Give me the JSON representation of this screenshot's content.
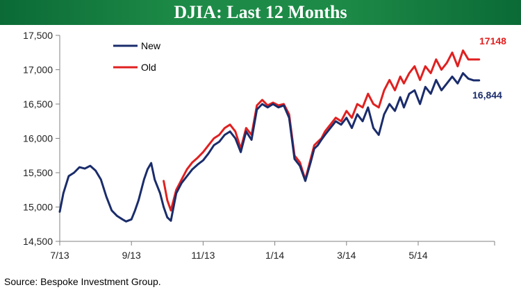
{
  "title": "DJIA: Last 12 Months",
  "source": "Source: Bespoke Investment Group.",
  "colors": {
    "title_bg": "#1d8b47",
    "new": "#1a2c6b",
    "old": "#e02020",
    "axis": "#808080"
  },
  "chart_data": {
    "type": "line",
    "title": "DJIA: Last 12 Months",
    "xlabel": "",
    "ylabel": "",
    "ylim": [
      14500,
      17500
    ],
    "yticks": [
      14500,
      15000,
      15500,
      16000,
      16500,
      17000,
      17500
    ],
    "ytick_labels": [
      "14,500",
      "15,000",
      "15,500",
      "16,000",
      "16,500",
      "17,000",
      "17,500"
    ],
    "xticks": [
      0,
      2,
      4,
      6,
      8,
      10
    ],
    "xtick_labels": [
      "7/13",
      "9/13",
      "11/13",
      "1/14",
      "3/14",
      "5/14"
    ],
    "xlim": [
      0,
      11.9
    ],
    "x_unit": "months since 7/13",
    "grid": false,
    "legend": {
      "position": "top-left",
      "entries": [
        "New",
        "Old"
      ]
    },
    "annotations": [
      {
        "series": "Old",
        "text": "17148"
      },
      {
        "series": "New",
        "text": "16,844"
      }
    ],
    "series": [
      {
        "name": "New",
        "x": [
          0,
          0.1,
          0.25,
          0.4,
          0.55,
          0.7,
          0.85,
          1.0,
          1.15,
          1.3,
          1.45,
          1.6,
          1.75,
          1.85,
          2.0,
          2.1,
          2.2,
          2.35,
          2.45,
          2.55,
          2.65,
          2.8,
          2.9,
          3.0,
          3.1,
          3.25,
          3.4,
          3.55,
          3.7,
          3.85,
          4.0,
          4.15,
          4.3,
          4.45,
          4.6,
          4.75,
          4.9,
          5.05,
          5.2,
          5.35,
          5.5,
          5.65,
          5.8,
          5.95,
          6.1,
          6.25,
          6.4,
          6.55,
          6.7,
          6.85,
          7.0,
          7.1,
          7.2,
          7.3,
          7.4,
          7.55,
          7.7,
          7.85,
          8.0,
          8.15,
          8.3,
          8.45,
          8.6,
          8.75,
          8.9,
          9.05,
          9.2,
          9.35,
          9.5,
          9.6,
          9.75,
          9.9,
          10.05,
          10.2,
          10.35,
          10.5,
          10.65,
          10.8,
          10.95,
          11.1,
          11.25,
          11.4,
          11.55,
          11.7
        ],
        "y": [
          14930,
          15200,
          15450,
          15500,
          15580,
          15560,
          15600,
          15530,
          15400,
          15150,
          14950,
          14870,
          14820,
          14790,
          14820,
          14950,
          15100,
          15400,
          15550,
          15640,
          15400,
          15200,
          15000,
          14850,
          14800,
          15200,
          15350,
          15450,
          15550,
          15620,
          15680,
          15780,
          15900,
          15950,
          16050,
          16100,
          16000,
          15800,
          16100,
          15980,
          16420,
          16500,
          16450,
          16500,
          16450,
          16480,
          16300,
          15700,
          15600,
          15380,
          15650,
          15850,
          15900,
          15980,
          16050,
          16150,
          16250,
          16200,
          16300,
          16150,
          16350,
          16250,
          16450,
          16150,
          16050,
          16350,
          16500,
          16400,
          16600,
          16450,
          16650,
          16700,
          16500,
          16750,
          16650,
          16850,
          16700,
          16800,
          16900,
          16800,
          16950,
          16870,
          16844,
          16844
        ]
      },
      {
        "name": "Old",
        "x": [
          2.9,
          3.0,
          3.1,
          3.25,
          3.4,
          3.55,
          3.7,
          3.85,
          4.0,
          4.15,
          4.3,
          4.45,
          4.6,
          4.75,
          4.9,
          5.05,
          5.2,
          5.35,
          5.5,
          5.65,
          5.8,
          5.95,
          6.1,
          6.25,
          6.4,
          6.55,
          6.7,
          6.85,
          7.0,
          7.1,
          7.2,
          7.3,
          7.4,
          7.55,
          7.7,
          7.85,
          8.0,
          8.15,
          8.3,
          8.45,
          8.6,
          8.75,
          8.9,
          9.05,
          9.2,
          9.35,
          9.5,
          9.6,
          9.75,
          9.9,
          10.05,
          10.2,
          10.35,
          10.5,
          10.65,
          10.8,
          10.95,
          11.1,
          11.25,
          11.4,
          11.55,
          11.7
        ],
        "y": [
          15380,
          15100,
          14950,
          15250,
          15400,
          15550,
          15650,
          15720,
          15800,
          15900,
          16000,
          16050,
          16150,
          16200,
          16100,
          15850,
          16150,
          16050,
          16480,
          16560,
          16480,
          16520,
          16480,
          16500,
          16350,
          15750,
          15650,
          15400,
          15700,
          15900,
          15950,
          16000,
          16100,
          16200,
          16300,
          16250,
          16400,
          16300,
          16500,
          16450,
          16650,
          16500,
          16450,
          16700,
          16850,
          16700,
          16900,
          16800,
          16950,
          17050,
          16850,
          17050,
          16950,
          17150,
          17000,
          17100,
          17250,
          17050,
          17280,
          17150,
          17148,
          17148
        ]
      }
    ]
  }
}
